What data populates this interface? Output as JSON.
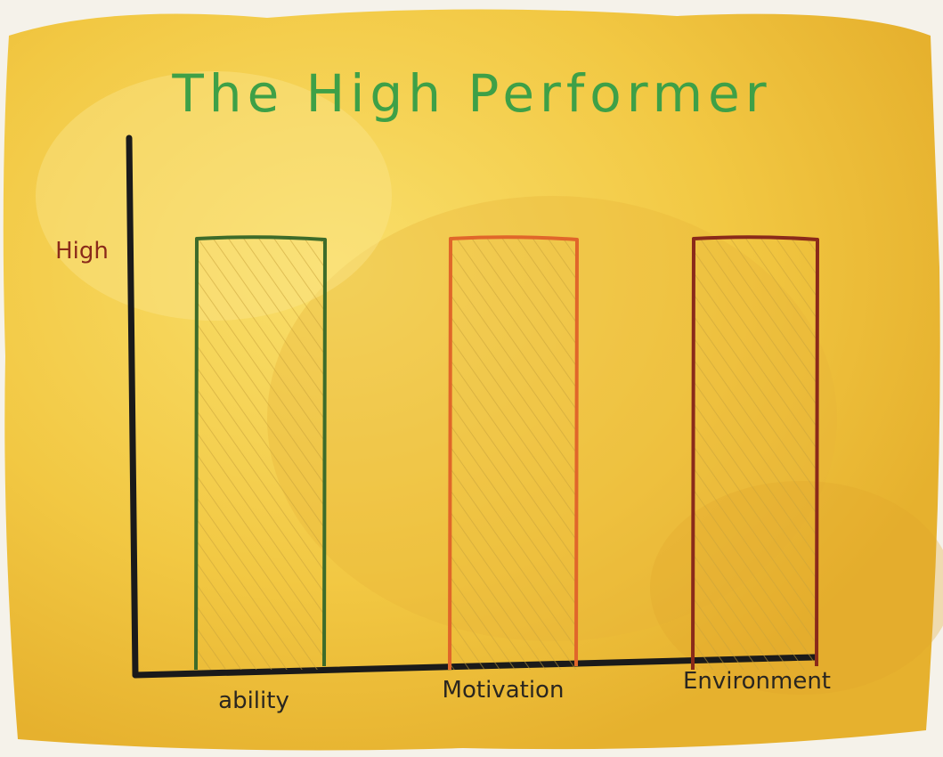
{
  "chart_data": {
    "type": "bar",
    "title": "The High Performer",
    "categories": [
      "ability",
      "Motivation",
      "Environment"
    ],
    "values": [
      1,
      1,
      1
    ],
    "ytick_label": "High",
    "ylim": [
      0,
      1.2
    ],
    "grid": false,
    "colors": {
      "title": "#3ea047",
      "ytick": "#8a2a1a",
      "axis": "#1a1a1a",
      "bars": [
        "#3d6b2a",
        "#e0662a",
        "#8a2a1a"
      ],
      "hatch": "#c9a23a",
      "background": "#f2c843"
    }
  }
}
